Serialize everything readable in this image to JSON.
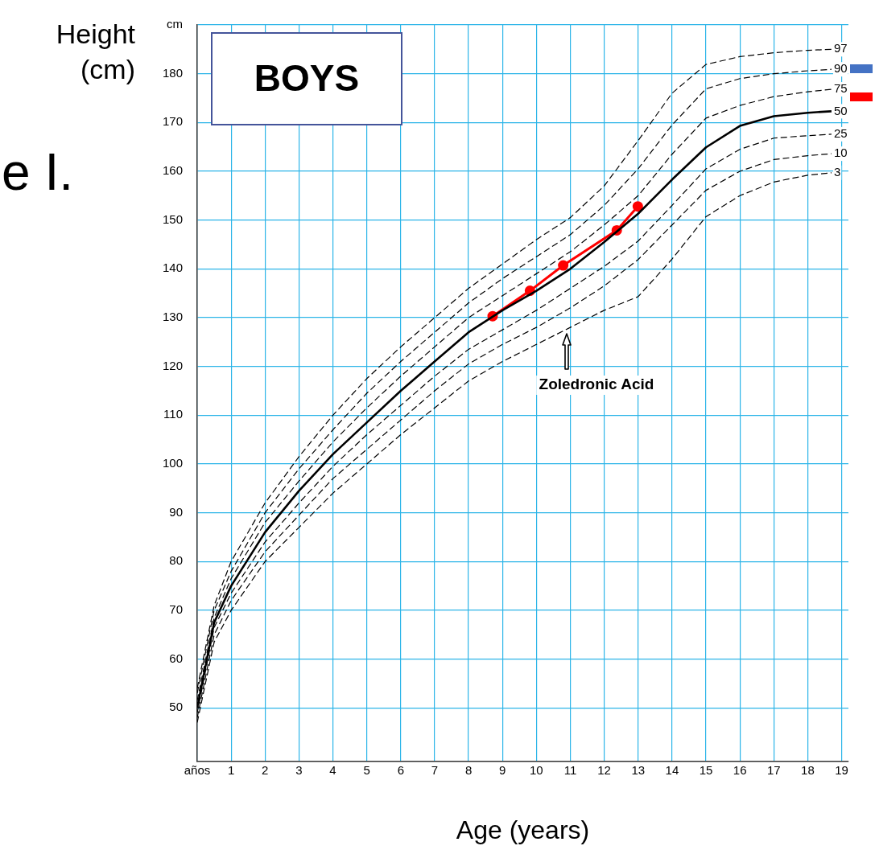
{
  "chart_data": {
    "type": "line",
    "title": "BOYS",
    "xlabel": "Age (years)",
    "ylabel": "Height (cm)",
    "xlim": [
      0,
      19.2
    ],
    "xticks": [
      {
        "value": 0,
        "label": "años"
      },
      1,
      2,
      3,
      4,
      5,
      6,
      7,
      8,
      9,
      10,
      11,
      12,
      13,
      14,
      15,
      16,
      17,
      18,
      19
    ],
    "ylim": [
      39,
      190
    ],
    "yticks": [
      50,
      60,
      70,
      80,
      90,
      100,
      110,
      120,
      130,
      140,
      150,
      160,
      170,
      180,
      {
        "value": 190,
        "label": "cm"
      }
    ],
    "grid": true,
    "legend": false,
    "x": [
      0,
      0.5,
      1,
      2,
      3,
      4,
      5,
      6,
      7,
      8,
      9,
      10,
      11,
      12,
      13,
      14,
      15,
      16,
      17,
      18,
      18.7
    ],
    "series": [
      {
        "name": "97",
        "color": "#000000",
        "line_style": "dashed",
        "marker": "none",
        "values": [
          54,
          71,
          80,
          92,
          101.5,
          110,
          117.5,
          124,
          130,
          136,
          141,
          146,
          150.5,
          157,
          166.3,
          176,
          181.9,
          183.5,
          184.3,
          184.8,
          185
        ]
      },
      {
        "name": "90",
        "color": "#000000",
        "line_style": "dashed",
        "marker": "none",
        "values": [
          53,
          70,
          78,
          90,
          99,
          107,
          114.5,
          121,
          127,
          133,
          138,
          142.5,
          147,
          153,
          160.5,
          169.5,
          176.9,
          179,
          180,
          180.6,
          180.9
        ]
      },
      {
        "name": "75",
        "color": "#000000",
        "line_style": "dashed",
        "marker": "none",
        "values": [
          51.5,
          68.5,
          76.5,
          88,
          96.5,
          104.5,
          111.5,
          118,
          124,
          130,
          134.5,
          139,
          143.5,
          149,
          155,
          163.5,
          170.9,
          173.5,
          175.3,
          176.3,
          176.8
        ]
      },
      {
        "name": "50",
        "color": "#000000",
        "line_style": "solid",
        "marker": "none",
        "values": [
          50,
          67.5,
          75,
          86,
          94.5,
          102,
          108.5,
          115,
          121,
          127,
          131.5,
          135.5,
          140,
          145.5,
          151.3,
          158.3,
          164.9,
          169.3,
          171.3,
          172,
          172.3
        ]
      },
      {
        "name": "25",
        "color": "#000000",
        "line_style": "dashed",
        "marker": "none",
        "values": [
          49,
          66.5,
          73.5,
          84,
          92,
          99.5,
          106,
          112,
          118,
          123.5,
          127.5,
          131.5,
          136,
          140.5,
          145.7,
          153,
          160.5,
          164.5,
          166.8,
          167.3,
          167.6
        ]
      },
      {
        "name": "10",
        "color": "#000000",
        "line_style": "dashed",
        "marker": "none",
        "values": [
          48,
          65,
          72,
          82,
          89.5,
          97,
          103,
          109,
          115,
          120.5,
          124.5,
          128,
          132,
          136.5,
          141.9,
          149,
          156.1,
          160,
          162.4,
          163.2,
          163.6
        ]
      },
      {
        "name": "3",
        "color": "#000000",
        "line_style": "dashed",
        "marker": "none",
        "values": [
          47,
          63.5,
          70,
          80,
          87,
          94,
          100,
          106,
          111.5,
          117,
          121,
          124.5,
          128,
          131.5,
          134.3,
          142,
          150.7,
          155,
          157.8,
          159.2,
          159.7
        ]
      },
      {
        "color": "#ff0000",
        "line_style": "solid",
        "marker": "circle",
        "x": [
          8.71,
          9.81,
          10.79,
          12.37,
          12.99
        ],
        "values": [
          130.3,
          135.5,
          140.7,
          147.9,
          152.8
        ]
      }
    ],
    "annotations": [
      "Zoledronic Acid",
      "e I."
    ]
  }
}
